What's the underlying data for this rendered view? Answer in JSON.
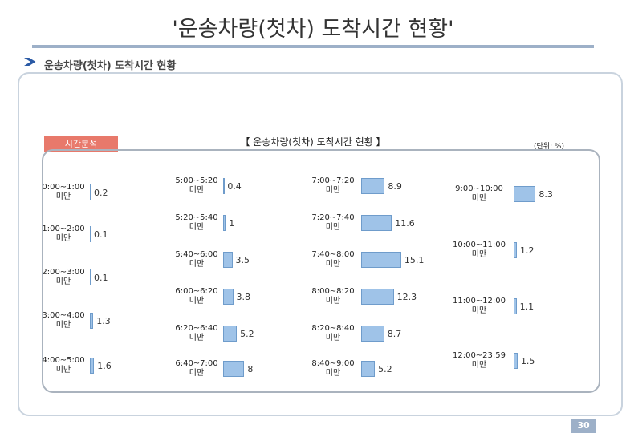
{
  "title": "'운송차량(첫차) 도착시간 현황'",
  "heading": "운송차량(첫차) 도착시간 현황",
  "tag": "시간분석",
  "page_number": "30",
  "chart_data": {
    "type": "bar",
    "title": "【 운송차량(첫차) 도착시간 현황 】",
    "unit": "(단위: %)",
    "color": "#9fc3e8",
    "categories": [
      "0:00~1:00 미만",
      "1:00~2:00 미만",
      "2:00~3:00 미만",
      "3:00~4:00 미만",
      "4:00~5:00 미만",
      "5:00~5:20 미만",
      "5:20~5:40 미만",
      "5:40~6:00 미만",
      "6:00~6:20 미만",
      "6:20~6:40 미만",
      "6:40~7:00 미만",
      "7:00~7:20 미만",
      "7:20~7:40 미만",
      "7:40~8:00 미만",
      "8:00~8:20 미만",
      "8:20~8:40 미만",
      "8:40~9:00 미만",
      "9:00~10:00 미만",
      "10:00~11:00 미만",
      "11:00~12:00 미만",
      "12:00~23:59 미만"
    ],
    "values": [
      0.2,
      0.1,
      0.1,
      1.3,
      1.6,
      0.4,
      1.0,
      3.5,
      3.8,
      5.2,
      8.0,
      8.9,
      11.6,
      15.1,
      12.3,
      8.7,
      5.2,
      8.3,
      1.2,
      1.1,
      1.5
    ]
  }
}
